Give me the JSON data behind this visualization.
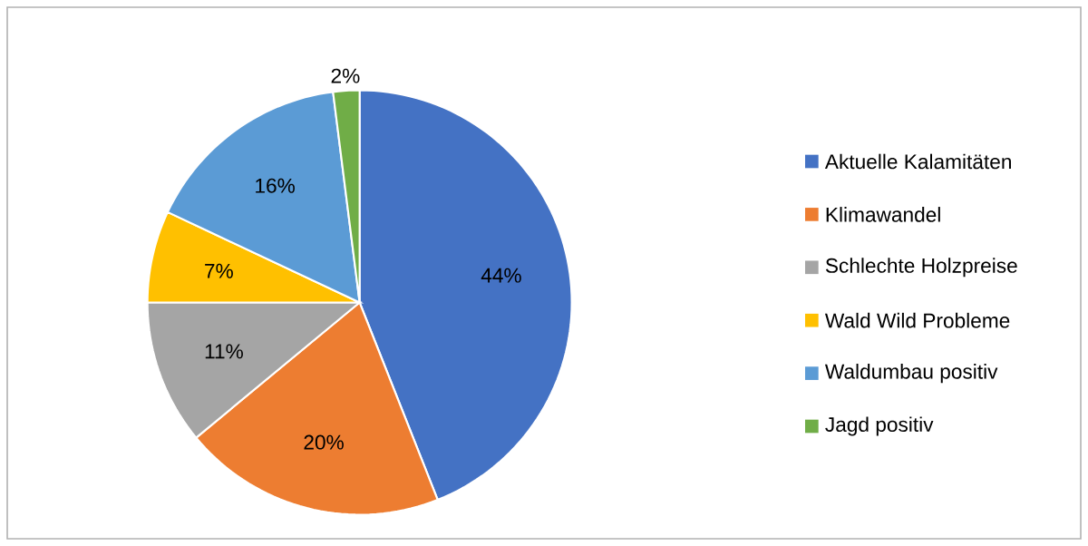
{
  "chart_data": {
    "type": "pie",
    "categories": [
      "Aktuelle Kalamitäten",
      "Klimawandel",
      "Schlechte Holzpreise",
      "Wald Wild Probleme",
      "Waldumbau positiv",
      "Jagd positiv"
    ],
    "values": [
      44,
      20,
      11,
      7,
      16,
      2
    ],
    "value_labels": [
      "44%",
      "20%",
      "11%",
      "7%",
      "16%",
      "2%"
    ],
    "colors": [
      "#4472c4",
      "#ed7d31",
      "#a5a5a5",
      "#ffc000",
      "#5b9bd5",
      "#70ad47"
    ],
    "legend": "right"
  }
}
